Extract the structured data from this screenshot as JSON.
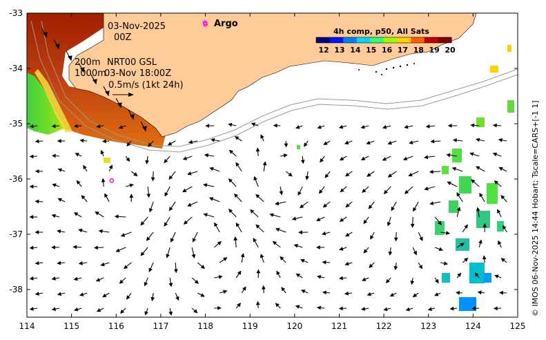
{
  "map": {
    "date": "03-Nov-2025",
    "hour": "00Z",
    "depth_200": "200m",
    "nrt_label": "NRT00 GSL",
    "depth_1000": "1000m",
    "nrt_time": "03-Nov 18:00Z",
    "vector_scale": "0.5m/s (1kt 24h)",
    "argo_label": "Argo",
    "credit": "© IMOS 06-Nov-2025 14:44 Hobart; Tscale=CARS+[-1 1]",
    "colors": {
      "land": "#ffcc99",
      "argo_marker": "#ff00ff",
      "contour": "#999999"
    }
  },
  "colorbar": {
    "title": "4h comp, p50, All Sats",
    "ticks": [
      "12",
      "13",
      "14",
      "15",
      "16",
      "17",
      "18",
      "19",
      "20"
    ],
    "colors": [
      "#00007f",
      "#0010ff",
      "#0080ff",
      "#00d8ff",
      "#30ff70",
      "#a0ff00",
      "#ffd000",
      "#ff6000",
      "#c00000",
      "#7f0000"
    ]
  },
  "axes": {
    "x_ticks": [
      "114",
      "115",
      "116",
      "117",
      "118",
      "119",
      "120",
      "121",
      "122",
      "123",
      "124",
      "125"
    ],
    "y_ticks": [
      "-33",
      "-34",
      "-35",
      "-36",
      "-37",
      "-38"
    ],
    "x_range": [
      114,
      125
    ],
    "y_range": [
      -38.5,
      -33
    ]
  },
  "argo_floats": [
    {
      "lon": 118.0,
      "lat": -33.2
    },
    {
      "lon": 115.9,
      "lat": -36.03
    }
  ]
}
